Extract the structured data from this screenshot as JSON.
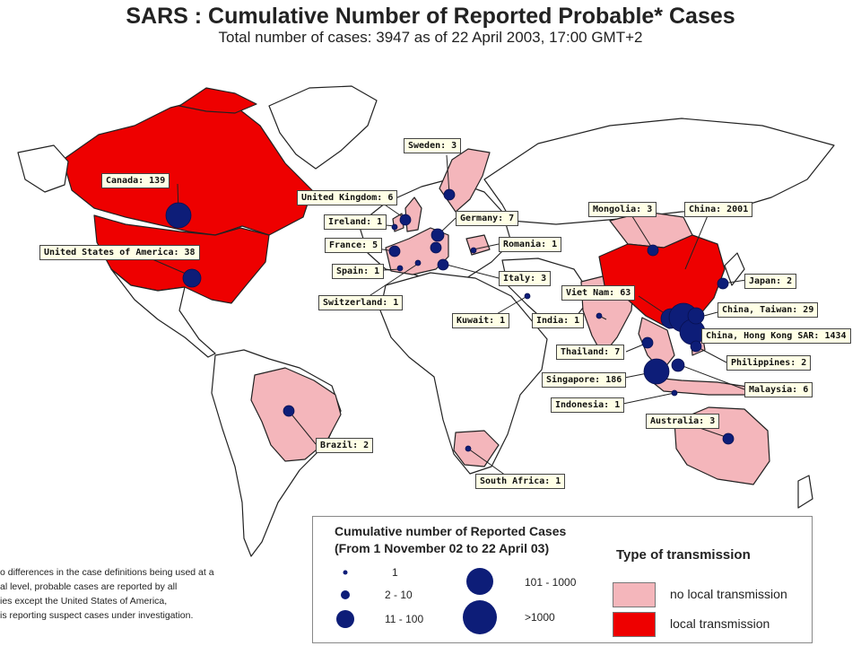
{
  "map_title": "SARS : Cumulative Number of Reported Probable* Cases",
  "map_subtitle": "Total number of cases: 3947 as of 22 April 2003, 17:00 GMT+2",
  "colors": {
    "local": "#ee0000",
    "no_local": "#f4b6bb",
    "dot": "#0d1d78",
    "label_bg": "#ffffe6"
  },
  "labels": {
    "canada": "Canada: 139",
    "usa": "United States of America: 38",
    "uk": "United Kingdom: 6",
    "ireland": "Ireland: 1",
    "france": "France: 5",
    "spain": "Spain: 1",
    "switzerland": "Switzerland: 1",
    "sweden": "Sweden: 3",
    "germany": "Germany: 7",
    "romania": "Romania: 1",
    "italy": "Italy: 3",
    "kuwait": "Kuwait: 1",
    "india": "India: 1",
    "vietnam": "Viet Nam: 63",
    "mongolia": "Mongolia: 3",
    "china": "China: 2001",
    "japan": "Japan: 2",
    "taiwan": "China, Taiwan: 29",
    "hongkong": "China, Hong Kong SAR: 1434",
    "thailand": "Thailand: 7",
    "philippines": "Philippines: 2",
    "singapore": "Singapore: 186",
    "malaysia": "Malaysia: 6",
    "indonesia": "Indonesia: 1",
    "australia": "Australia: 3",
    "brazil": "Brazil: 2",
    "southafrica": "South Africa: 1"
  },
  "legend": {
    "title_line1": "Cumulative number of Reported Cases",
    "title_line2": "(From 1 November 02 to 22 April 03)",
    "size_1": "1",
    "size_2": "2 - 10",
    "size_3": "11 - 100",
    "size_4": "101 - 1000",
    "size_5": ">1000",
    "type_title": "Type of transmission",
    "no_local": "no local transmission",
    "local": "local transmission"
  },
  "footnote": {
    "line1": "o differences in the case definitions being used at a",
    "line2": "al level, probable cases are reported by all",
    "line3": "ies except the United States of America,",
    "line4": "is reporting suspect cases under investigation."
  }
}
